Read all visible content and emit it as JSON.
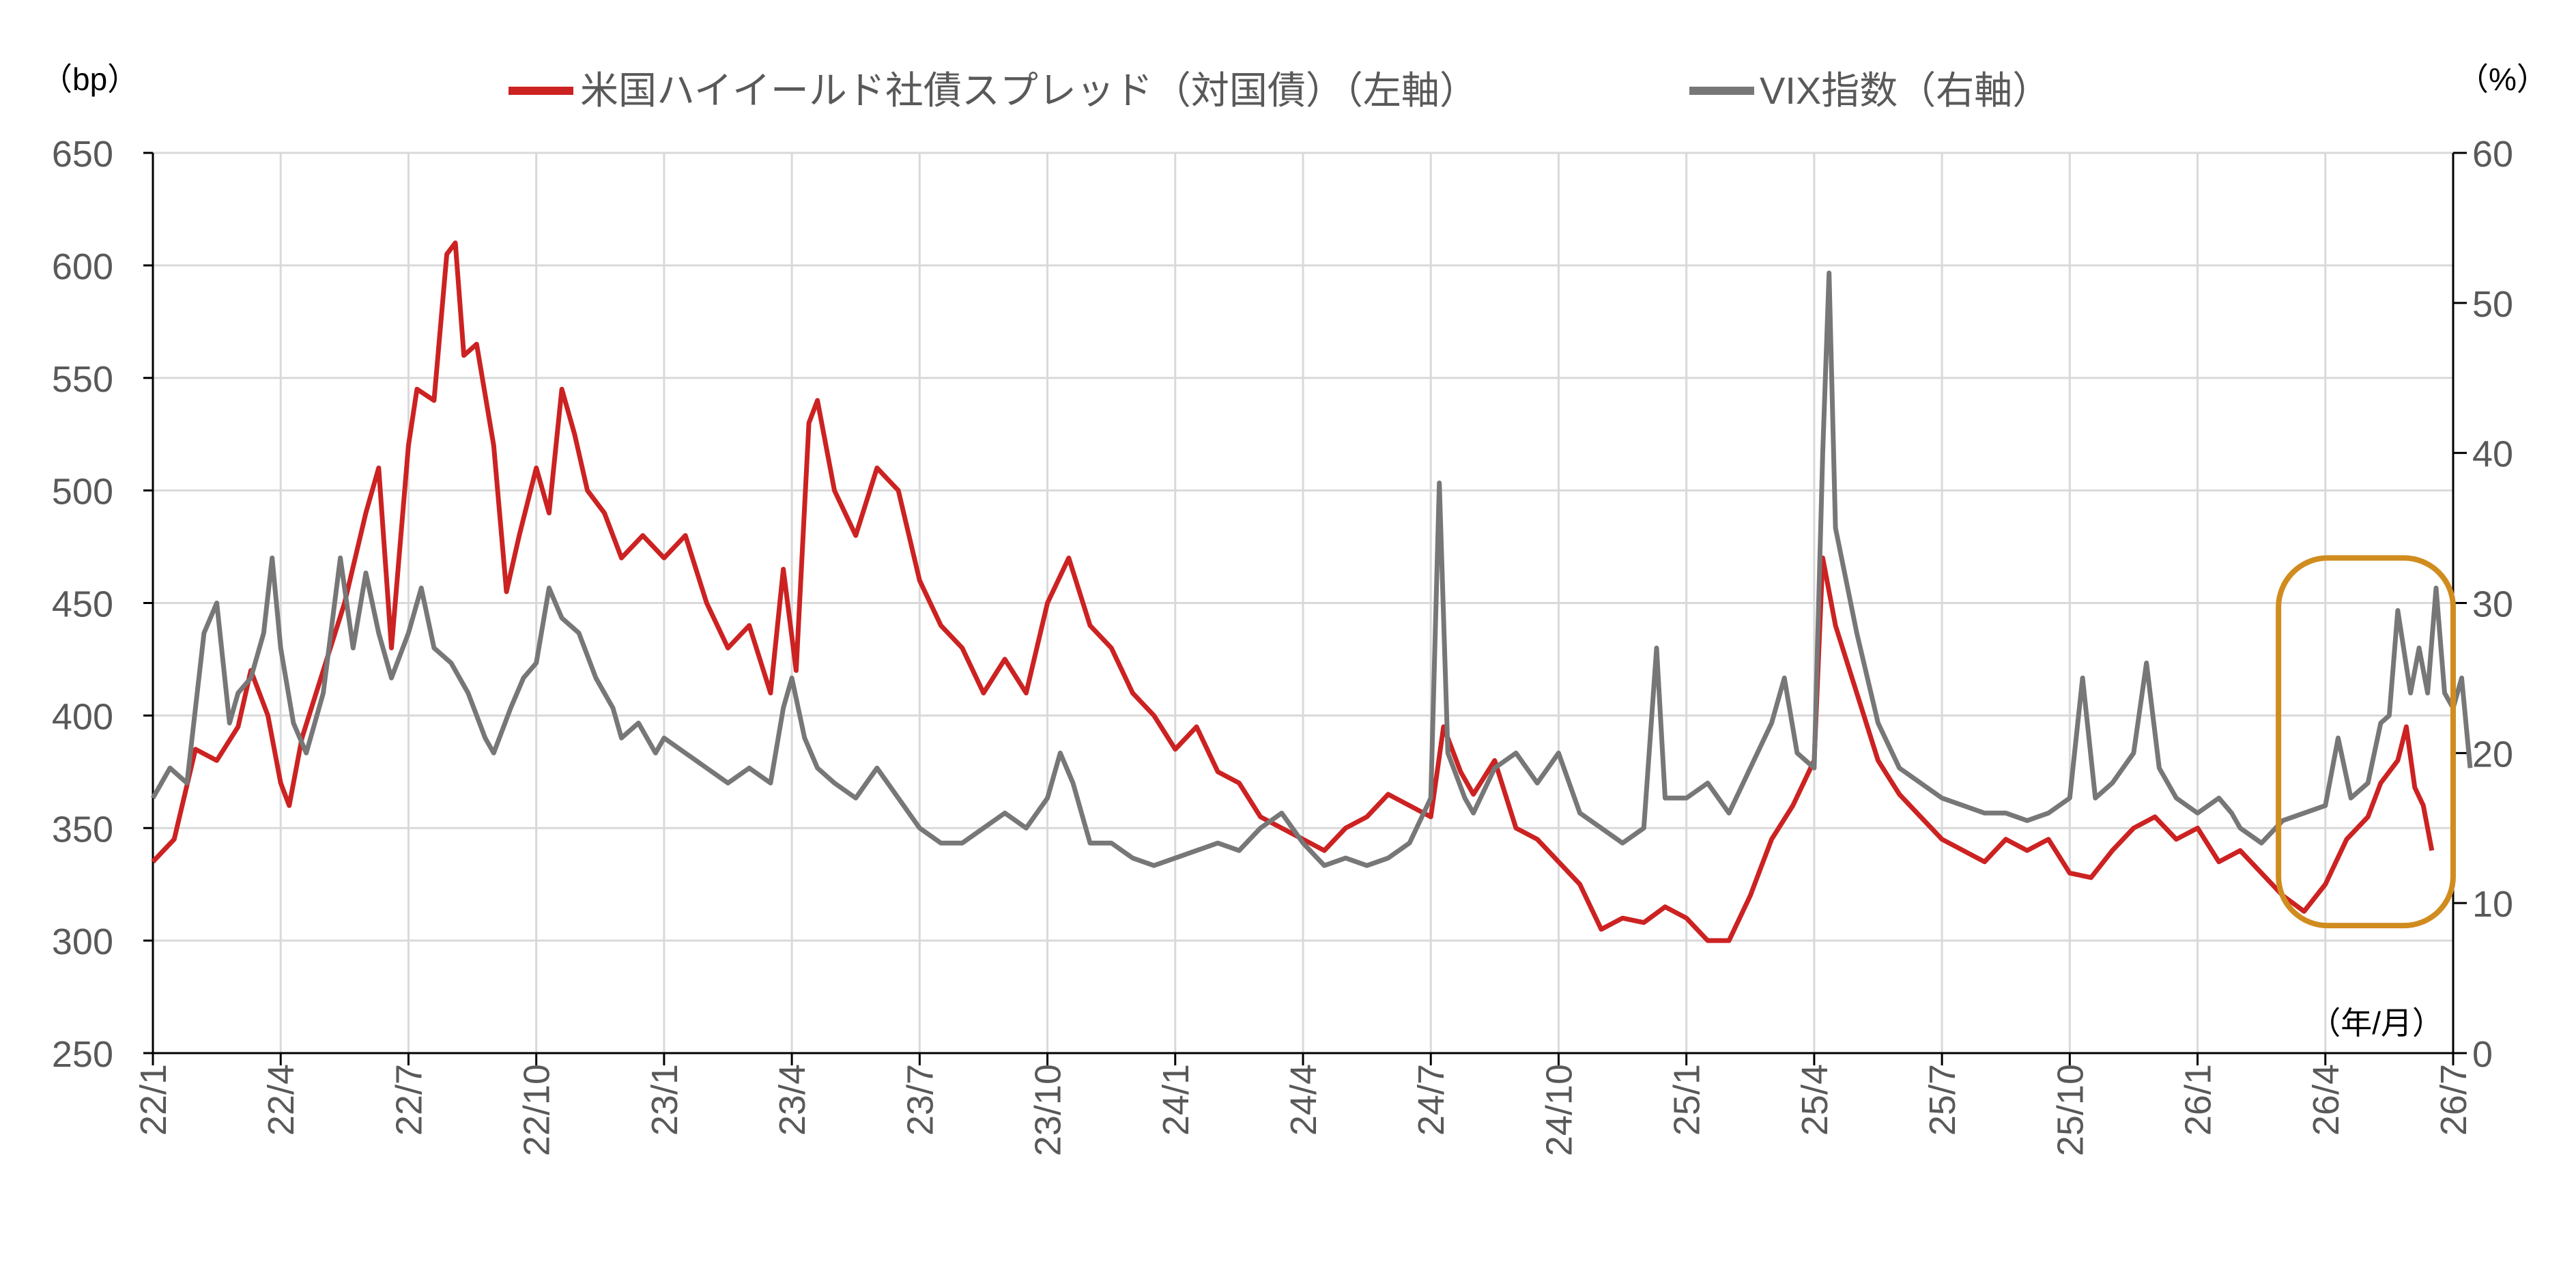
{
  "chart_data": {
    "type": "line",
    "title": "",
    "legend": {
      "placement": "top-center",
      "items": [
        "米国ハイイールド社債スプレッド（対国債）（左軸）",
        "VIX指数（右軸）"
      ]
    },
    "y_left": {
      "unit_label": "（bp）",
      "range": [
        250,
        650
      ],
      "ticks": [
        "250",
        "300",
        "350",
        "400",
        "450",
        "500",
        "550",
        "600",
        "650"
      ]
    },
    "y_right": {
      "unit_label": "（%）",
      "range": [
        0,
        60
      ],
      "ticks": [
        "0",
        "10",
        "20",
        "30",
        "40",
        "50",
        "60"
      ]
    },
    "x": {
      "unit_label": "（年/月）",
      "range_months_from_2022_01": [
        0,
        54
      ],
      "ticks": [
        "22/1",
        "22/4",
        "22/7",
        "22/10",
        "23/1",
        "23/4",
        "23/7",
        "23/10",
        "24/1",
        "24/4",
        "24/7",
        "24/10",
        "25/1",
        "25/4",
        "25/7",
        "25/10",
        "26/1",
        "26/4",
        "26/7"
      ]
    },
    "grid": true,
    "colors": {
      "hy": "#CC2222",
      "vix": "#777777",
      "highlight": "#D08C1E",
      "grid": "#D9D9D9"
    },
    "highlight_box": {
      "x_months": [
        49.9,
        54.0
      ],
      "y_right": [
        8.5,
        33
      ]
    },
    "series": [
      {
        "name": "米国ハイイールド社債スプレッド（対国債）（左軸）",
        "axis": "left",
        "points": [
          [
            0,
            335
          ],
          [
            0.5,
            345
          ],
          [
            1,
            385
          ],
          [
            1.5,
            380
          ],
          [
            2,
            395
          ],
          [
            2.3,
            420
          ],
          [
            2.7,
            400
          ],
          [
            3,
            370
          ],
          [
            3.2,
            360
          ],
          [
            3.5,
            390
          ],
          [
            4,
            420
          ],
          [
            4.5,
            450
          ],
          [
            5,
            490
          ],
          [
            5.3,
            510
          ],
          [
            5.6,
            430
          ],
          [
            6,
            520
          ],
          [
            6.2,
            545
          ],
          [
            6.6,
            540
          ],
          [
            6.9,
            605
          ],
          [
            7.1,
            610
          ],
          [
            7.3,
            560
          ],
          [
            7.6,
            565
          ],
          [
            8,
            520
          ],
          [
            8.3,
            455
          ],
          [
            8.6,
            480
          ],
          [
            9,
            510
          ],
          [
            9.3,
            490
          ],
          [
            9.6,
            545
          ],
          [
            9.9,
            525
          ],
          [
            10.2,
            500
          ],
          [
            10.6,
            490
          ],
          [
            11,
            470
          ],
          [
            11.5,
            480
          ],
          [
            12,
            470
          ],
          [
            12.5,
            480
          ],
          [
            13,
            450
          ],
          [
            13.5,
            430
          ],
          [
            14,
            440
          ],
          [
            14.5,
            410
          ],
          [
            14.8,
            465
          ],
          [
            15.1,
            420
          ],
          [
            15.4,
            530
          ],
          [
            15.6,
            540
          ],
          [
            16,
            500
          ],
          [
            16.5,
            480
          ],
          [
            17,
            510
          ],
          [
            17.5,
            500
          ],
          [
            18,
            460
          ],
          [
            18.5,
            440
          ],
          [
            19,
            430
          ],
          [
            19.5,
            410
          ],
          [
            20,
            425
          ],
          [
            20.5,
            410
          ],
          [
            21,
            450
          ],
          [
            21.5,
            470
          ],
          [
            22,
            440
          ],
          [
            22.5,
            430
          ],
          [
            23,
            410
          ],
          [
            23.5,
            400
          ],
          [
            24,
            385
          ],
          [
            24.5,
            395
          ],
          [
            25,
            375
          ],
          [
            25.5,
            370
          ],
          [
            26,
            355
          ],
          [
            26.5,
            350
          ],
          [
            27,
            345
          ],
          [
            27.5,
            340
          ],
          [
            28,
            350
          ],
          [
            28.5,
            355
          ],
          [
            29,
            365
          ],
          [
            29.5,
            360
          ],
          [
            30,
            355
          ],
          [
            30.3,
            395
          ],
          [
            30.7,
            375
          ],
          [
            31,
            365
          ],
          [
            31.5,
            380
          ],
          [
            32,
            350
          ],
          [
            32.5,
            345
          ],
          [
            33,
            335
          ],
          [
            33.5,
            325
          ],
          [
            34,
            305
          ],
          [
            34.5,
            310
          ],
          [
            35,
            308
          ],
          [
            35.5,
            315
          ],
          [
            36,
            310
          ],
          [
            36.5,
            300
          ],
          [
            37,
            300
          ],
          [
            37.5,
            320
          ],
          [
            38,
            345
          ],
          [
            38.5,
            360
          ],
          [
            39,
            380
          ],
          [
            39.2,
            470
          ],
          [
            39.5,
            440
          ],
          [
            40,
            410
          ],
          [
            40.5,
            380
          ],
          [
            41,
            365
          ],
          [
            41.5,
            355
          ],
          [
            42,
            345
          ],
          [
            42.5,
            340
          ],
          [
            43,
            335
          ],
          [
            43.5,
            345
          ],
          [
            44,
            340
          ],
          [
            44.5,
            345
          ],
          [
            45,
            330
          ],
          [
            45.5,
            328
          ],
          [
            46,
            340
          ],
          [
            46.5,
            350
          ],
          [
            47,
            355
          ],
          [
            47.5,
            345
          ],
          [
            48,
            350
          ],
          [
            48.5,
            335
          ],
          [
            49,
            340
          ],
          [
            49.5,
            330
          ],
          [
            50,
            320
          ],
          [
            50.5,
            313
          ],
          [
            51,
            325
          ],
          [
            51.5,
            345
          ],
          [
            52,
            355
          ],
          [
            52.3,
            370
          ],
          [
            52.7,
            380
          ],
          [
            52.9,
            395
          ],
          [
            53.1,
            368
          ],
          [
            53.3,
            360
          ],
          [
            53.5,
            340
          ]
        ]
      },
      {
        "name": "VIX指数（右軸）",
        "axis": "right",
        "points": [
          [
            0,
            17
          ],
          [
            0.4,
            19
          ],
          [
            0.8,
            18
          ],
          [
            1.2,
            28
          ],
          [
            1.5,
            30
          ],
          [
            1.8,
            22
          ],
          [
            2,
            24
          ],
          [
            2.3,
            25
          ],
          [
            2.6,
            28
          ],
          [
            2.8,
            33
          ],
          [
            3,
            27
          ],
          [
            3.3,
            22
          ],
          [
            3.6,
            20
          ],
          [
            4,
            24
          ],
          [
            4.4,
            33
          ],
          [
            4.7,
            27
          ],
          [
            5,
            32
          ],
          [
            5.3,
            28
          ],
          [
            5.6,
            25
          ],
          [
            6,
            28
          ],
          [
            6.3,
            31
          ],
          [
            6.6,
            27
          ],
          [
            7,
            26
          ],
          [
            7.4,
            24
          ],
          [
            7.8,
            21
          ],
          [
            8,
            20
          ],
          [
            8.4,
            23
          ],
          [
            8.7,
            25
          ],
          [
            9,
            26
          ],
          [
            9.3,
            31
          ],
          [
            9.6,
            29
          ],
          [
            10,
            28
          ],
          [
            10.4,
            25
          ],
          [
            10.8,
            23
          ],
          [
            11,
            21
          ],
          [
            11.4,
            22
          ],
          [
            11.8,
            20
          ],
          [
            12,
            21
          ],
          [
            12.5,
            20
          ],
          [
            13,
            19
          ],
          [
            13.5,
            18
          ],
          [
            14,
            19
          ],
          [
            14.5,
            18
          ],
          [
            14.8,
            23
          ],
          [
            15,
            25
          ],
          [
            15.3,
            21
          ],
          [
            15.6,
            19
          ],
          [
            16,
            18
          ],
          [
            16.5,
            17
          ],
          [
            17,
            19
          ],
          [
            17.5,
            17
          ],
          [
            18,
            15
          ],
          [
            18.5,
            14
          ],
          [
            19,
            14
          ],
          [
            19.5,
            15
          ],
          [
            20,
            16
          ],
          [
            20.5,
            15
          ],
          [
            21,
            17
          ],
          [
            21.3,
            20
          ],
          [
            21.6,
            18
          ],
          [
            22,
            14
          ],
          [
            22.5,
            14
          ],
          [
            23,
            13
          ],
          [
            23.5,
            12.5
          ],
          [
            24,
            13
          ],
          [
            24.5,
            13.5
          ],
          [
            25,
            14
          ],
          [
            25.5,
            13.5
          ],
          [
            26,
            15
          ],
          [
            26.5,
            16
          ],
          [
            27,
            14
          ],
          [
            27.5,
            12.5
          ],
          [
            28,
            13
          ],
          [
            28.5,
            12.5
          ],
          [
            29,
            13
          ],
          [
            29.5,
            14
          ],
          [
            30,
            17
          ],
          [
            30.2,
            38
          ],
          [
            30.4,
            20
          ],
          [
            30.8,
            17
          ],
          [
            31,
            16
          ],
          [
            31.5,
            19
          ],
          [
            32,
            20
          ],
          [
            32.5,
            18
          ],
          [
            33,
            20
          ],
          [
            33.5,
            16
          ],
          [
            34,
            15
          ],
          [
            34.5,
            14
          ],
          [
            35,
            15
          ],
          [
            35.3,
            27
          ],
          [
            35.5,
            17
          ],
          [
            36,
            17
          ],
          [
            36.5,
            18
          ],
          [
            37,
            16
          ],
          [
            37.5,
            19
          ],
          [
            38,
            22
          ],
          [
            38.3,
            25
          ],
          [
            38.6,
            20
          ],
          [
            39,
            19
          ],
          [
            39.2,
            40
          ],
          [
            39.35,
            52
          ],
          [
            39.5,
            35
          ],
          [
            40,
            28
          ],
          [
            40.5,
            22
          ],
          [
            41,
            19
          ],
          [
            41.5,
            18
          ],
          [
            42,
            17
          ],
          [
            42.5,
            16.5
          ],
          [
            43,
            16
          ],
          [
            43.5,
            16
          ],
          [
            44,
            15.5
          ],
          [
            44.5,
            16
          ],
          [
            45,
            17
          ],
          [
            45.3,
            25
          ],
          [
            45.6,
            17
          ],
          [
            46,
            18
          ],
          [
            46.5,
            20
          ],
          [
            46.8,
            26
          ],
          [
            47.1,
            19
          ],
          [
            47.5,
            17
          ],
          [
            48,
            16
          ],
          [
            48.5,
            17
          ],
          [
            48.8,
            16
          ],
          [
            49,
            15
          ],
          [
            49.5,
            14
          ],
          [
            50,
            15.5
          ],
          [
            50.5,
            16
          ],
          [
            51,
            16.5
          ],
          [
            51.3,
            21
          ],
          [
            51.6,
            17
          ],
          [
            52,
            18
          ],
          [
            52.3,
            22
          ],
          [
            52.5,
            22.5
          ],
          [
            52.7,
            29.5
          ],
          [
            53,
            24
          ],
          [
            53.2,
            27
          ],
          [
            53.4,
            24
          ],
          [
            53.6,
            31
          ],
          [
            53.8,
            24
          ],
          [
            54,
            23
          ],
          [
            54.2,
            25
          ],
          [
            54.4,
            19
          ]
        ]
      }
    ]
  }
}
